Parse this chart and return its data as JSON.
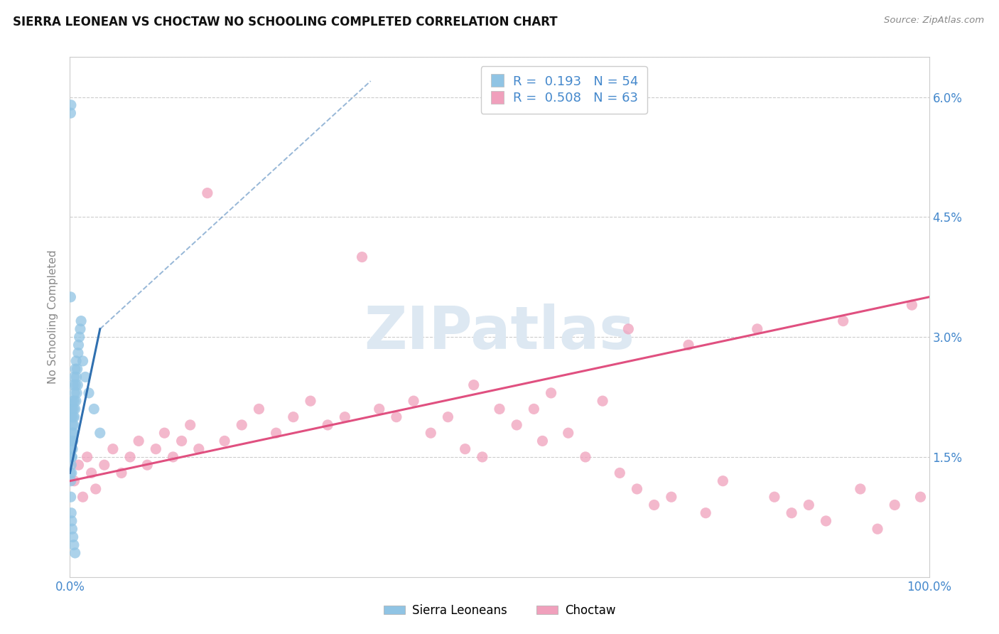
{
  "title": "SIERRA LEONEAN VS CHOCTAW NO SCHOOLING COMPLETED CORRELATION CHART",
  "source": "Source: ZipAtlas.com",
  "ylabel": "No Schooling Completed",
  "xlim": [
    0,
    100
  ],
  "ylim": [
    0,
    6.5
  ],
  "ytick_vals": [
    1.5,
    3.0,
    4.5,
    6.0
  ],
  "ytick_labels": [
    "1.5%",
    "3.0%",
    "4.5%",
    "6.0%"
  ],
  "xtick_vals": [
    0,
    100
  ],
  "xtick_labels": [
    "0.0%",
    "100.0%"
  ],
  "blue_color": "#90c4e4",
  "pink_color": "#f0a0bc",
  "blue_line_color": "#3070b0",
  "pink_line_color": "#e05080",
  "blue_label": "Sierra Leoneans",
  "pink_label": "Choctaw",
  "legend_r1": "R =  0.193   N = 54",
  "legend_r2": "R =  0.508   N = 63",
  "grid_color": "#cccccc",
  "watermark_text": "ZIPatlas",
  "watermark_color": "#dde8f2",
  "tick_color": "#4488cc",
  "title_color": "#111111",
  "source_color": "#888888",
  "ylabel_color": "#888888",
  "sierra_x": [
    0.05,
    0.08,
    0.1,
    0.12,
    0.12,
    0.15,
    0.15,
    0.18,
    0.2,
    0.2,
    0.22,
    0.25,
    0.25,
    0.28,
    0.3,
    0.3,
    0.32,
    0.35,
    0.38,
    0.4,
    0.4,
    0.42,
    0.45,
    0.5,
    0.5,
    0.52,
    0.55,
    0.6,
    0.62,
    0.65,
    0.7,
    0.72,
    0.75,
    0.8,
    0.85,
    0.9,
    0.95,
    1.0,
    1.1,
    1.2,
    1.3,
    1.5,
    1.8,
    2.2,
    2.8,
    3.5,
    0.08,
    0.1,
    0.15,
    0.2,
    0.25,
    0.35,
    0.45,
    0.6
  ],
  "sierra_y": [
    1.3,
    5.8,
    1.2,
    5.9,
    1.7,
    1.4,
    1.6,
    1.5,
    1.3,
    2.0,
    1.7,
    1.5,
    2.1,
    1.8,
    1.6,
    2.2,
    1.9,
    1.7,
    2.0,
    1.8,
    2.4,
    2.1,
    1.9,
    2.2,
    2.5,
    2.0,
    2.3,
    2.1,
    2.6,
    2.4,
    2.2,
    2.7,
    2.5,
    2.3,
    2.6,
    2.4,
    2.8,
    2.9,
    3.0,
    3.1,
    3.2,
    2.7,
    2.5,
    2.3,
    2.1,
    1.8,
    3.5,
    1.0,
    0.8,
    0.7,
    0.6,
    0.5,
    0.4,
    0.3
  ],
  "choctaw_x": [
    0.5,
    1.0,
    1.5,
    2.0,
    2.5,
    3.0,
    4.0,
    5.0,
    6.0,
    7.0,
    8.0,
    9.0,
    10.0,
    11.0,
    12.0,
    13.0,
    14.0,
    15.0,
    16.0,
    18.0,
    20.0,
    22.0,
    24.0,
    26.0,
    28.0,
    30.0,
    32.0,
    34.0,
    36.0,
    38.0,
    40.0,
    42.0,
    44.0,
    46.0,
    47.0,
    48.0,
    50.0,
    52.0,
    54.0,
    55.0,
    56.0,
    58.0,
    60.0,
    62.0,
    64.0,
    65.0,
    66.0,
    68.0,
    70.0,
    72.0,
    74.0,
    76.0,
    80.0,
    82.0,
    84.0,
    86.0,
    88.0,
    90.0,
    92.0,
    94.0,
    96.0,
    98.0,
    99.0
  ],
  "choctaw_y": [
    1.2,
    1.4,
    1.0,
    1.5,
    1.3,
    1.1,
    1.4,
    1.6,
    1.3,
    1.5,
    1.7,
    1.4,
    1.6,
    1.8,
    1.5,
    1.7,
    1.9,
    1.6,
    4.8,
    1.7,
    1.9,
    2.1,
    1.8,
    2.0,
    2.2,
    1.9,
    2.0,
    4.0,
    2.1,
    2.0,
    2.2,
    1.8,
    2.0,
    1.6,
    2.4,
    1.5,
    2.1,
    1.9,
    2.1,
    1.7,
    2.3,
    1.8,
    1.5,
    2.2,
    1.3,
    3.1,
    1.1,
    0.9,
    1.0,
    2.9,
    0.8,
    1.2,
    3.1,
    1.0,
    0.8,
    0.9,
    0.7,
    3.2,
    1.1,
    0.6,
    0.9,
    3.4,
    1.0
  ],
  "blue_line_x0": 0.0,
  "blue_line_y0": 1.3,
  "blue_line_x1": 3.5,
  "blue_line_y1": 3.1,
  "blue_dash_x0": 3.5,
  "blue_dash_y0": 3.1,
  "blue_dash_x1": 35.0,
  "blue_dash_y1": 6.2,
  "pink_line_x0": 0.0,
  "pink_line_y0": 1.2,
  "pink_line_x1": 100.0,
  "pink_line_y1": 3.5
}
